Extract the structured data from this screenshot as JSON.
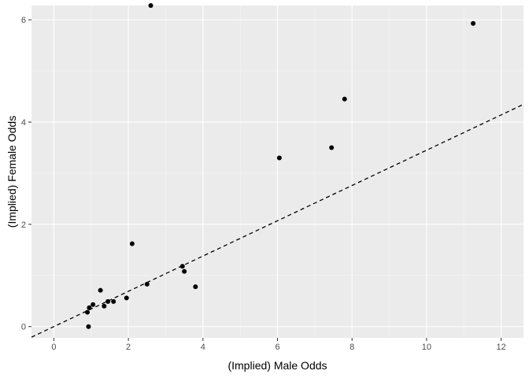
{
  "chart_data": {
    "type": "scatter",
    "title": "",
    "xlabel": "(Implied) Male Odds",
    "ylabel": "(Implied) Female Odds",
    "xlim": [
      -0.6,
      12.6
    ],
    "ylim": [
      -0.22,
      6.28
    ],
    "x_ticks": [
      0,
      2,
      4,
      6,
      8,
      10,
      12
    ],
    "y_ticks": [
      0,
      2,
      4,
      6
    ],
    "grid": true,
    "legend": "none",
    "colors": {
      "panel_background": "#ebebeb",
      "grid_major": "#ffffff",
      "grid_minor": "#f5f5f5",
      "points": "#000000",
      "reference_line": "#000000"
    },
    "reference_line": {
      "style": "dashed",
      "intercept": 0.0,
      "slope": 0.345
    },
    "points": [
      {
        "x": 2.6,
        "y": 6.28
      },
      {
        "x": 11.25,
        "y": 5.93
      },
      {
        "x": 7.8,
        "y": 4.45
      },
      {
        "x": 7.45,
        "y": 3.5
      },
      {
        "x": 6.05,
        "y": 3.3
      },
      {
        "x": 2.1,
        "y": 1.62
      },
      {
        "x": 3.45,
        "y": 1.18
      },
      {
        "x": 3.5,
        "y": 1.08
      },
      {
        "x": 3.8,
        "y": 0.78
      },
      {
        "x": 2.5,
        "y": 0.83
      },
      {
        "x": 1.95,
        "y": 0.56
      },
      {
        "x": 1.6,
        "y": 0.49
      },
      {
        "x": 1.45,
        "y": 0.49
      },
      {
        "x": 1.35,
        "y": 0.4
      },
      {
        "x": 1.25,
        "y": 0.71
      },
      {
        "x": 1.05,
        "y": 0.43
      },
      {
        "x": 0.95,
        "y": 0.37
      },
      {
        "x": 0.9,
        "y": 0.28
      },
      {
        "x": 0.93,
        "y": 0.0
      }
    ]
  }
}
